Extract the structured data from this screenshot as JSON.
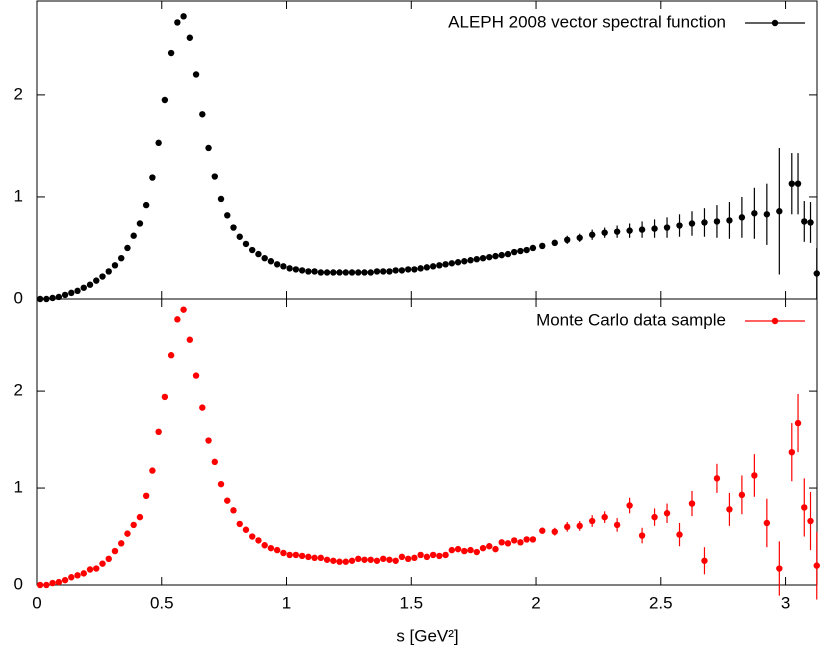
{
  "chart_data": [
    {
      "type": "scatter",
      "legend": "upper right",
      "xlim": [
        0,
        3.13
      ],
      "ylim": [
        0,
        2.92
      ],
      "xticks": [
        0,
        0.5,
        1,
        1.5,
        2,
        2.5,
        3
      ],
      "yticks": [
        0,
        1,
        2
      ],
      "series": [
        {
          "name": "ALEPH 2008 vector spectral function",
          "color": "#000000",
          "x": [
            0.0125,
            0.0375,
            0.0625,
            0.0875,
            0.1125,
            0.1375,
            0.1625,
            0.1875,
            0.2125,
            0.2375,
            0.2625,
            0.2875,
            0.3125,
            0.3375,
            0.3625,
            0.3875,
            0.4125,
            0.4375,
            0.4625,
            0.4875,
            0.5125,
            0.5375,
            0.5625,
            0.5875,
            0.6125,
            0.6375,
            0.6625,
            0.6875,
            0.7125,
            0.7375,
            0.7625,
            0.7875,
            0.8125,
            0.8375,
            0.8625,
            0.8875,
            0.9125,
            0.9375,
            0.9625,
            0.9875,
            1.0125,
            1.0375,
            1.0625,
            1.0875,
            1.1125,
            1.1375,
            1.1625,
            1.1875,
            1.2125,
            1.2375,
            1.2625,
            1.2875,
            1.3125,
            1.3375,
            1.3625,
            1.3875,
            1.4125,
            1.4375,
            1.4625,
            1.4875,
            1.5125,
            1.5375,
            1.5625,
            1.5875,
            1.6125,
            1.6375,
            1.6625,
            1.6875,
            1.7125,
            1.7375,
            1.7625,
            1.7875,
            1.8125,
            1.8375,
            1.8625,
            1.8875,
            1.9125,
            1.9375,
            1.9625,
            1.9875,
            2.025,
            2.075,
            2.125,
            2.175,
            2.225,
            2.275,
            2.325,
            2.375,
            2.425,
            2.475,
            2.525,
            2.575,
            2.625,
            2.675,
            2.725,
            2.775,
            2.825,
            2.875,
            2.925,
            2.975,
            3.025,
            3.05,
            3.075,
            3.1,
            3.125
          ],
          "values": [
            0.0,
            0.0,
            0.01,
            0.02,
            0.04,
            0.06,
            0.08,
            0.11,
            0.14,
            0.18,
            0.22,
            0.27,
            0.33,
            0.4,
            0.5,
            0.62,
            0.74,
            0.92,
            1.19,
            1.53,
            1.95,
            2.41,
            2.71,
            2.77,
            2.56,
            2.2,
            1.81,
            1.48,
            1.2,
            0.98,
            0.82,
            0.7,
            0.61,
            0.54,
            0.48,
            0.44,
            0.4,
            0.37,
            0.34,
            0.32,
            0.3,
            0.29,
            0.28,
            0.27,
            0.27,
            0.26,
            0.26,
            0.26,
            0.26,
            0.26,
            0.26,
            0.26,
            0.26,
            0.26,
            0.27,
            0.27,
            0.27,
            0.28,
            0.28,
            0.29,
            0.29,
            0.3,
            0.31,
            0.32,
            0.33,
            0.34,
            0.35,
            0.36,
            0.37,
            0.38,
            0.39,
            0.4,
            0.41,
            0.42,
            0.43,
            0.44,
            0.46,
            0.47,
            0.48,
            0.5,
            0.52,
            0.55,
            0.58,
            0.6,
            0.63,
            0.65,
            0.66,
            0.67,
            0.68,
            0.69,
            0.7,
            0.72,
            0.74,
            0.75,
            0.76,
            0.77,
            0.8,
            0.84,
            0.83,
            0.86,
            1.13,
            1.13,
            0.76,
            0.75,
            0.25
          ],
          "errors": [
            0.01,
            0.01,
            0.01,
            0.01,
            0.01,
            0.01,
            0.01,
            0.01,
            0.01,
            0.01,
            0.01,
            0.01,
            0.01,
            0.01,
            0.01,
            0.01,
            0.01,
            0.01,
            0.01,
            0.01,
            0.01,
            0.01,
            0.01,
            0.01,
            0.01,
            0.01,
            0.01,
            0.01,
            0.01,
            0.01,
            0.01,
            0.01,
            0.01,
            0.01,
            0.01,
            0.01,
            0.01,
            0.01,
            0.01,
            0.01,
            0.01,
            0.01,
            0.01,
            0.01,
            0.01,
            0.01,
            0.01,
            0.01,
            0.01,
            0.01,
            0.01,
            0.01,
            0.01,
            0.01,
            0.01,
            0.01,
            0.01,
            0.01,
            0.01,
            0.01,
            0.02,
            0.02,
            0.02,
            0.02,
            0.02,
            0.02,
            0.02,
            0.02,
            0.02,
            0.02,
            0.02,
            0.02,
            0.02,
            0.02,
            0.02,
            0.02,
            0.02,
            0.02,
            0.02,
            0.02,
            0.03,
            0.03,
            0.04,
            0.04,
            0.05,
            0.05,
            0.06,
            0.07,
            0.08,
            0.09,
            0.1,
            0.11,
            0.12,
            0.14,
            0.16,
            0.18,
            0.2,
            0.25,
            0.3,
            0.62,
            0.3,
            0.3,
            0.2,
            0.2,
            0.25
          ]
        }
      ]
    },
    {
      "type": "scatter",
      "legend": "upper right",
      "xlim": [
        0,
        3.13
      ],
      "ylim": [
        0,
        2.95
      ],
      "xticks": [
        0,
        0.5,
        1,
        1.5,
        2,
        2.5,
        3
      ],
      "yticks": [
        0,
        1,
        2
      ],
      "x_label": "s   [GeV²]",
      "series": [
        {
          "name": "Monte Carlo data sample",
          "color": "#ff0000",
          "x": [
            0.0125,
            0.0375,
            0.0625,
            0.0875,
            0.1125,
            0.1375,
            0.1625,
            0.1875,
            0.2125,
            0.2375,
            0.2625,
            0.2875,
            0.3125,
            0.3375,
            0.3625,
            0.3875,
            0.4125,
            0.4375,
            0.4625,
            0.4875,
            0.5125,
            0.5375,
            0.5625,
            0.5875,
            0.6125,
            0.6375,
            0.6625,
            0.6875,
            0.7125,
            0.7375,
            0.7625,
            0.7875,
            0.8125,
            0.8375,
            0.8625,
            0.8875,
            0.9125,
            0.9375,
            0.9625,
            0.9875,
            1.0125,
            1.0375,
            1.0625,
            1.0875,
            1.1125,
            1.1375,
            1.1625,
            1.1875,
            1.2125,
            1.2375,
            1.2625,
            1.2875,
            1.3125,
            1.3375,
            1.3625,
            1.3875,
            1.4125,
            1.4375,
            1.4625,
            1.4875,
            1.5125,
            1.5375,
            1.5625,
            1.5875,
            1.6125,
            1.6375,
            1.6625,
            1.6875,
            1.7125,
            1.7375,
            1.7625,
            1.7875,
            1.8125,
            1.8375,
            1.8625,
            1.8875,
            1.9125,
            1.9375,
            1.9625,
            1.9875,
            2.025,
            2.075,
            2.125,
            2.175,
            2.225,
            2.275,
            2.325,
            2.375,
            2.425,
            2.475,
            2.525,
            2.575,
            2.625,
            2.675,
            2.725,
            2.775,
            2.825,
            2.875,
            2.925,
            2.975,
            3.025,
            3.05,
            3.075,
            3.1,
            3.125
          ],
          "values": [
            0.0,
            0.0,
            0.02,
            0.03,
            0.05,
            0.08,
            0.1,
            0.12,
            0.16,
            0.17,
            0.22,
            0.27,
            0.35,
            0.43,
            0.53,
            0.62,
            0.7,
            0.92,
            1.18,
            1.58,
            1.94,
            2.37,
            2.74,
            2.84,
            2.53,
            2.16,
            1.83,
            1.49,
            1.27,
            1.04,
            0.87,
            0.77,
            0.63,
            0.57,
            0.5,
            0.46,
            0.41,
            0.38,
            0.36,
            0.33,
            0.31,
            0.31,
            0.3,
            0.29,
            0.28,
            0.28,
            0.26,
            0.25,
            0.24,
            0.24,
            0.25,
            0.27,
            0.26,
            0.26,
            0.25,
            0.27,
            0.26,
            0.25,
            0.29,
            0.27,
            0.28,
            0.31,
            0.29,
            0.31,
            0.3,
            0.31,
            0.36,
            0.37,
            0.35,
            0.36,
            0.34,
            0.38,
            0.4,
            0.37,
            0.44,
            0.43,
            0.46,
            0.44,
            0.47,
            0.47,
            0.56,
            0.55,
            0.6,
            0.61,
            0.66,
            0.7,
            0.62,
            0.82,
            0.51,
            0.7,
            0.74,
            0.52,
            0.84,
            0.25,
            1.1,
            0.78,
            0.93,
            1.13,
            0.64,
            0.17,
            1.37,
            1.67,
            0.8,
            0.66,
            0.2
          ],
          "errors": [
            0.01,
            0.01,
            0.01,
            0.01,
            0.01,
            0.01,
            0.01,
            0.01,
            0.01,
            0.01,
            0.01,
            0.01,
            0.01,
            0.01,
            0.01,
            0.01,
            0.01,
            0.01,
            0.01,
            0.01,
            0.01,
            0.01,
            0.01,
            0.01,
            0.01,
            0.01,
            0.01,
            0.01,
            0.01,
            0.01,
            0.01,
            0.01,
            0.01,
            0.01,
            0.01,
            0.01,
            0.01,
            0.01,
            0.01,
            0.01,
            0.01,
            0.01,
            0.01,
            0.01,
            0.01,
            0.01,
            0.01,
            0.01,
            0.01,
            0.01,
            0.01,
            0.01,
            0.01,
            0.01,
            0.01,
            0.01,
            0.01,
            0.01,
            0.01,
            0.01,
            0.02,
            0.02,
            0.02,
            0.02,
            0.02,
            0.02,
            0.02,
            0.02,
            0.02,
            0.02,
            0.02,
            0.02,
            0.02,
            0.02,
            0.02,
            0.02,
            0.02,
            0.02,
            0.02,
            0.02,
            0.03,
            0.04,
            0.05,
            0.05,
            0.06,
            0.06,
            0.07,
            0.08,
            0.08,
            0.09,
            0.1,
            0.12,
            0.13,
            0.14,
            0.15,
            0.17,
            0.2,
            0.22,
            0.25,
            0.28,
            0.3,
            0.3,
            0.3,
            0.3,
            0.35
          ]
        }
      ]
    }
  ]
}
